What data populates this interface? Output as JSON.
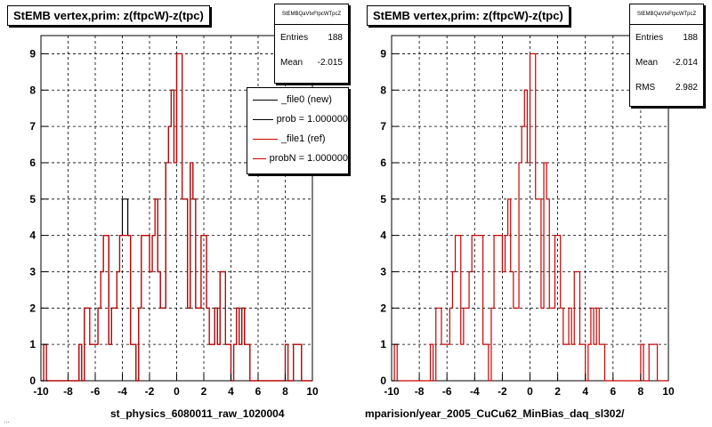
{
  "footer": "...",
  "chart_data": [
    {
      "type": "histogram",
      "title": "StEMB  vertex,prim: z(ftpcW)-z(tpc)",
      "xlabel": "st_physics_6080011_raw_1020004",
      "ylabel": "",
      "xlim": [
        -10,
        10
      ],
      "ylim": [
        0,
        9.5
      ],
      "x_ticks": [
        -10,
        -8,
        -6,
        -4,
        -2,
        0,
        2,
        4,
        6,
        8,
        10
      ],
      "y_ticks": [
        0,
        1,
        2,
        3,
        4,
        5,
        6,
        7,
        8,
        9
      ],
      "grid": true,
      "stats": {
        "name": "StEMBQaVtxFtpcWTpcZ",
        "rows": [
          {
            "label": "Entries",
            "value": "188"
          },
          {
            "label": "Mean",
            "value": "-2.015"
          }
        ]
      },
      "legend": {
        "position": "top-right",
        "entries": [
          {
            "label": "_file0 (new)",
            "color": "#000000"
          },
          {
            "label": "prob = 1.000000",
            "color": "#000000"
          },
          {
            "label": "_file1 (ref)",
            "color": "#cc0000"
          },
          {
            "label": "probN = 1.000000",
            "color": "#cc0000"
          }
        ]
      },
      "bin_edges_from": -10,
      "bin_width": 0.2,
      "series": [
        {
          "name": "_file0 (new)",
          "color": "#000000",
          "values": [
            0,
            1,
            0,
            0,
            0,
            0,
            0,
            0,
            0,
            0,
            0,
            0,
            0,
            0,
            1,
            0,
            2,
            2,
            1,
            1,
            1,
            2,
            3,
            4,
            4,
            1,
            2,
            2,
            3,
            4,
            5,
            5,
            4,
            1,
            1,
            0,
            2,
            4,
            4,
            4,
            3,
            4,
            5,
            3,
            2,
            2,
            6,
            7,
            8,
            6,
            9,
            9,
            5,
            5,
            2,
            6,
            5,
            2,
            2,
            4,
            4,
            2,
            1,
            1,
            2,
            1,
            3,
            3,
            1,
            1,
            0,
            1,
            2,
            1,
            2,
            1,
            1,
            0,
            0,
            0,
            0,
            0,
            0,
            0,
            0,
            0,
            0,
            0,
            0,
            0,
            1,
            0,
            0,
            1,
            1,
            1,
            0,
            0,
            0,
            0
          ]
        },
        {
          "name": "_file1 (ref)",
          "color": "#cc0000",
          "values": [
            0,
            1,
            0,
            0,
            0,
            0,
            0,
            0,
            0,
            0,
            0,
            0,
            0,
            0,
            1,
            0,
            2,
            2,
            1,
            1,
            1,
            2,
            3,
            4,
            4,
            1,
            2,
            2,
            3,
            4,
            4,
            4,
            4,
            1,
            1,
            0,
            2,
            4,
            4,
            4,
            3,
            4,
            5,
            3,
            2,
            2,
            6,
            7,
            8,
            6,
            9,
            9,
            5,
            5,
            2,
            6,
            5,
            2,
            2,
            4,
            4,
            2,
            1,
            1,
            2,
            1,
            3,
            3,
            1,
            1,
            0,
            1,
            2,
            1,
            2,
            1,
            1,
            0,
            0,
            0,
            0,
            0,
            0,
            0,
            0,
            0,
            0,
            0,
            0,
            0,
            1,
            0,
            0,
            1,
            1,
            1,
            0,
            0,
            0,
            0
          ]
        }
      ]
    },
    {
      "type": "histogram",
      "title": "StEMB  vertex,prim: z(ftpcW)-z(tpc)",
      "xlabel": "mparision/year_2005_CuCu62_MinBias_daq_sl302/",
      "ylabel": "",
      "xlim": [
        -10,
        10
      ],
      "ylim": [
        0,
        9.5
      ],
      "x_ticks": [
        -10,
        -8,
        -6,
        -4,
        -2,
        0,
        2,
        4,
        6,
        8,
        10
      ],
      "y_ticks": [
        0,
        1,
        2,
        3,
        4,
        5,
        6,
        7,
        8,
        9
      ],
      "grid": true,
      "stats": {
        "name": "StEMBQaVtxFtpcWTpcZ",
        "rows": [
          {
            "label": "Entries",
            "value": "188"
          },
          {
            "label": "Mean",
            "value": "-2.014"
          },
          {
            "label": "RMS",
            "value": "2.982"
          }
        ]
      },
      "bin_edges_from": -10,
      "bin_width": 0.2,
      "series": [
        {
          "name": "",
          "color": "#cc0000",
          "values": [
            0,
            1,
            0,
            0,
            0,
            0,
            0,
            0,
            0,
            0,
            0,
            0,
            0,
            0,
            1,
            0,
            2,
            2,
            1,
            1,
            1,
            2,
            3,
            4,
            4,
            1,
            2,
            2,
            3,
            4,
            4,
            4,
            4,
            1,
            1,
            0,
            2,
            4,
            4,
            4,
            3,
            4,
            5,
            3,
            2,
            2,
            6,
            7,
            8,
            6,
            9,
            9,
            5,
            5,
            2,
            6,
            5,
            2,
            2,
            4,
            4,
            2,
            1,
            1,
            2,
            1,
            3,
            3,
            1,
            1,
            0,
            1,
            2,
            1,
            2,
            1,
            1,
            0,
            0,
            0,
            0,
            0,
            0,
            0,
            0,
            0,
            0,
            0,
            0,
            0,
            1,
            0,
            0,
            1,
            1,
            1,
            0,
            0,
            0,
            0
          ]
        }
      ]
    }
  ]
}
